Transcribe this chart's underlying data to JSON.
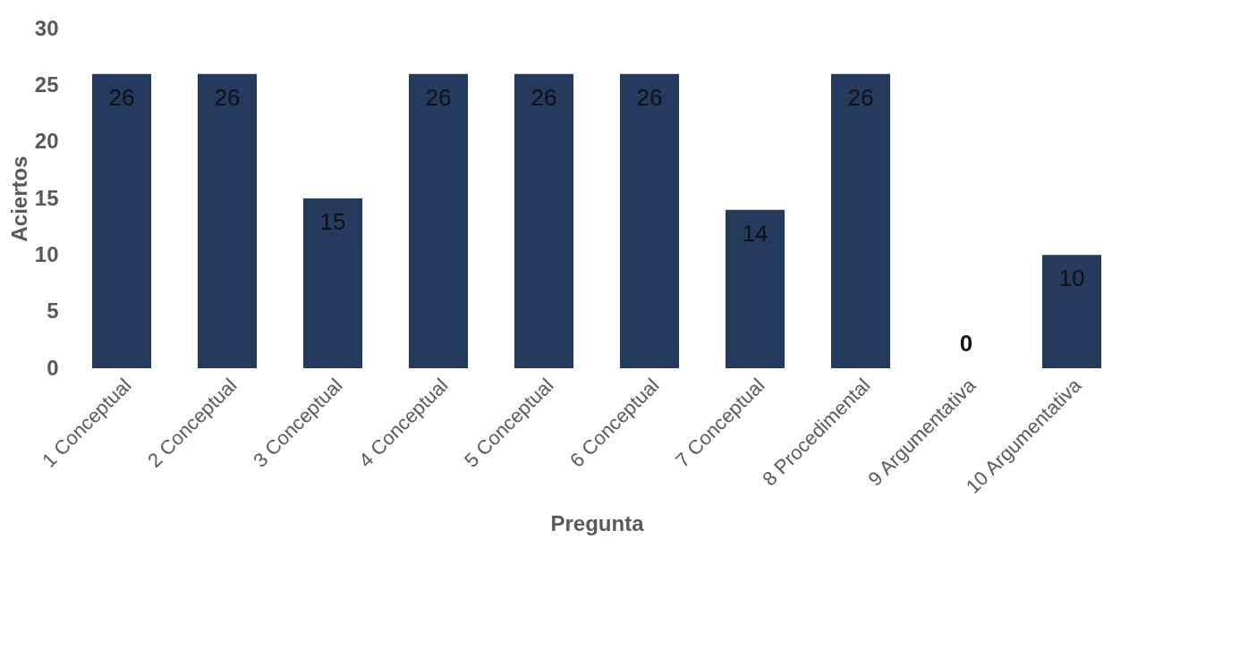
{
  "chart_data": {
    "type": "bar",
    "xlabel": "Pregunta",
    "ylabel": "Aciertos",
    "categories": [
      "1 Conceptual",
      "2 Conceptual",
      "3 Conceptual",
      "4 Conceptual",
      "5 Conceptual",
      "6 Conceptual",
      "7 Conceptual",
      "8 Procedimental",
      "9 Argumentativa",
      "10 Argumentativa"
    ],
    "values": [
      26,
      26,
      15,
      26,
      26,
      26,
      14,
      26,
      0,
      10
    ],
    "color": "#243a5e",
    "ylim": [
      0,
      30
    ],
    "yticks": [
      0,
      5,
      10,
      15,
      20,
      25,
      30
    ],
    "grid": false,
    "data_labels": true
  }
}
